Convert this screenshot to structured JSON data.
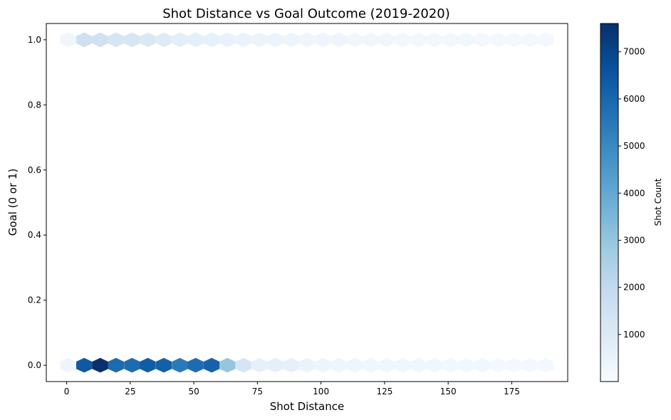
{
  "chart_data": {
    "type": "heatmap",
    "subtype": "hexbin",
    "title": "Shot Distance vs Goal Outcome (2019-2020)",
    "xlabel": "Shot Distance",
    "ylabel": "Goal (0 or 1)",
    "xlim": [
      -8,
      197
    ],
    "ylim": [
      -0.05,
      1.05
    ],
    "xticks": [
      0,
      25,
      50,
      75,
      100,
      125,
      150,
      175
    ],
    "xtick_labels": [
      "0",
      "25",
      "50",
      "75",
      "100",
      "125",
      "150",
      "175"
    ],
    "yticks": [
      0.0,
      0.2,
      0.4,
      0.6,
      0.8,
      1.0
    ],
    "ytick_labels": [
      "0.0",
      "0.2",
      "0.4",
      "0.6",
      "0.8",
      "1.0"
    ],
    "grid": false,
    "colormap": "Blues",
    "colorbar": {
      "label": "Shot Count",
      "range": [
        1,
        7600
      ],
      "ticks": [
        1000,
        2000,
        3000,
        4000,
        5000,
        6000,
        7000
      ],
      "tick_labels": [
        "1000",
        "2000",
        "3000",
        "4000",
        "5000",
        "6000",
        "7000"
      ]
    },
    "hex_width": 6.25,
    "series": [
      {
        "y": 1.0,
        "x": [
          0.6,
          6.9,
          13.2,
          19.4,
          25.7,
          31.9,
          38.2,
          44.5,
          50.7,
          57.0,
          63.2,
          69.5,
          75.8,
          82.0,
          88.3,
          94.5,
          100.8,
          107.1,
          113.3,
          119.6,
          125.8,
          132.1,
          138.4,
          144.6,
          150.9,
          157.1,
          163.4,
          169.7,
          175.9,
          182.2,
          188.4
        ],
        "counts": [
          300,
          1600,
          1500,
          1300,
          1250,
          1100,
          950,
          800,
          700,
          650,
          550,
          500,
          450,
          450,
          400,
          350,
          350,
          350,
          300,
          300,
          300,
          250,
          250,
          250,
          250,
          250,
          200,
          200,
          200,
          200,
          200
        ]
      },
      {
        "y": 0.0,
        "x": [
          0.6,
          6.9,
          13.2,
          19.4,
          25.7,
          31.9,
          38.2,
          44.5,
          50.7,
          57.0,
          63.2,
          69.5,
          75.8,
          82.0,
          88.3,
          94.5,
          100.8,
          107.1,
          113.3,
          119.6,
          125.8,
          132.1,
          138.4,
          144.6,
          150.9,
          157.1,
          163.4,
          169.7,
          175.9,
          182.2,
          188.4
        ],
        "counts": [
          350,
          6400,
          7600,
          5900,
          5850,
          6300,
          6200,
          5450,
          5850,
          6150,
          3000,
          1300,
          650,
          700,
          650,
          500,
          400,
          350,
          350,
          300,
          300,
          300,
          300,
          300,
          250,
          250,
          250,
          200,
          200,
          200,
          200
        ]
      }
    ]
  }
}
